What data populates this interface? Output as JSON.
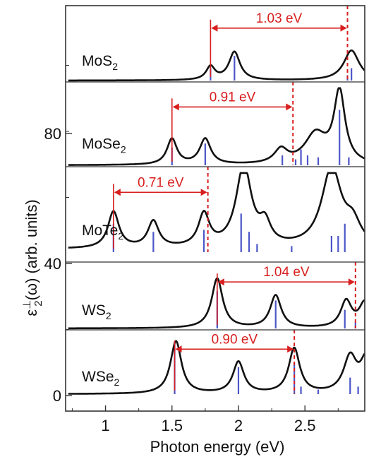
{
  "chart_data": {
    "type": "line",
    "xlabel": "Photon energy (eV)",
    "ylabel_main": "ε",
    "ylabel_sub": "2",
    "ylabel_sup": "⊥",
    "ylabel_rest": "(ω) (arb. units)",
    "xlim": [
      0.7,
      2.95
    ],
    "ylim": [
      0,
      100
    ],
    "x_ticks": [
      "1",
      "1.5",
      "2",
      "2.5"
    ],
    "y_ticks": [
      "0",
      "40",
      "80"
    ],
    "colors": {
      "curve": "#111111",
      "bars": "#4b56c8",
      "gap": "#d81e1e",
      "frame": "#333333"
    },
    "panels": [
      {
        "label": "MoS",
        "label_sub": "2",
        "gap_label": "1.03 eV",
        "gap_start": 1.79,
        "gap_end": 2.82,
        "peaks": [
          [
            1.79,
            7.5,
            0.04
          ],
          [
            1.97,
            16,
            0.05
          ],
          [
            2.85,
            17,
            0.07
          ]
        ],
        "baseline": 0.0,
        "bars": [
          [
            1.79,
            7
          ],
          [
            1.97,
            14
          ],
          [
            2.82,
            3
          ],
          [
            2.85,
            7
          ]
        ]
      },
      {
        "label": "MoSe",
        "label_sub": "2",
        "gap_label": "0.91 eV",
        "gap_start": 1.5,
        "gap_end": 2.41,
        "peaks": [
          [
            1.5,
            13,
            0.045
          ],
          [
            1.75,
            13,
            0.05
          ],
          [
            2.32,
            7,
            0.06
          ],
          [
            2.58,
            15,
            0.1
          ],
          [
            2.76,
            36,
            0.05
          ]
        ],
        "baseline": 0.0,
        "bars": [
          [
            1.5,
            9
          ],
          [
            1.75,
            11
          ],
          [
            2.33,
            5
          ],
          [
            2.43,
            3
          ],
          [
            2.47,
            8
          ],
          [
            2.52,
            5
          ],
          [
            2.6,
            4
          ],
          [
            2.76,
            28
          ],
          [
            2.83,
            4
          ]
        ]
      },
      {
        "label": "MoTe",
        "label_sub": "2",
        "gap_label": "0.71 eV",
        "gap_start": 1.06,
        "gap_end": 1.77,
        "peaks": [
          [
            1.06,
            18,
            0.05
          ],
          [
            1.36,
            13,
            0.05
          ],
          [
            1.74,
            16,
            0.05
          ],
          [
            2.04,
            40,
            0.07
          ],
          [
            2.2,
            10,
            0.05
          ],
          [
            2.7,
            39,
            0.09
          ],
          [
            2.86,
            10,
            0.07
          ]
        ],
        "baseline": 1.5,
        "bars": [
          [
            1.06,
            14
          ],
          [
            1.36,
            10
          ],
          [
            1.74,
            11
          ],
          [
            2.02,
            19
          ],
          [
            2.08,
            10
          ],
          [
            2.14,
            4
          ],
          [
            2.4,
            3
          ],
          [
            2.7,
            8
          ],
          [
            2.75,
            8
          ],
          [
            2.8,
            14
          ]
        ]
      },
      {
        "label": "WS",
        "label_sub": "2",
        "gap_label": "1.04 eV",
        "gap_start": 1.84,
        "gap_end": 2.88,
        "peaks": [
          [
            1.84,
            32,
            0.05
          ],
          [
            2.28,
            21,
            0.05
          ],
          [
            2.81,
            17,
            0.05
          ],
          [
            2.95,
            16,
            0.05
          ]
        ],
        "baseline": 0.0,
        "bars": [
          [
            1.84,
            24
          ],
          [
            2.28,
            18
          ],
          [
            2.8,
            12
          ],
          [
            2.88,
            4
          ]
        ]
      },
      {
        "label": "WSe",
        "label_sub": "2",
        "gap_label": "0.90 eV",
        "gap_start": 1.52,
        "gap_end": 2.42,
        "peaks": [
          [
            1.53,
            35,
            0.05
          ],
          [
            2.0,
            21,
            0.05
          ],
          [
            2.42,
            30,
            0.05
          ],
          [
            2.84,
            24,
            0.06
          ],
          [
            2.96,
            22,
            0.05
          ]
        ],
        "baseline": 0.0,
        "bars": [
          [
            1.52,
            35
          ],
          [
            2.0,
            18
          ],
          [
            2.42,
            21
          ],
          [
            2.47,
            5
          ],
          [
            2.6,
            3
          ],
          [
            2.84,
            11
          ],
          [
            2.9,
            5
          ]
        ]
      }
    ]
  }
}
